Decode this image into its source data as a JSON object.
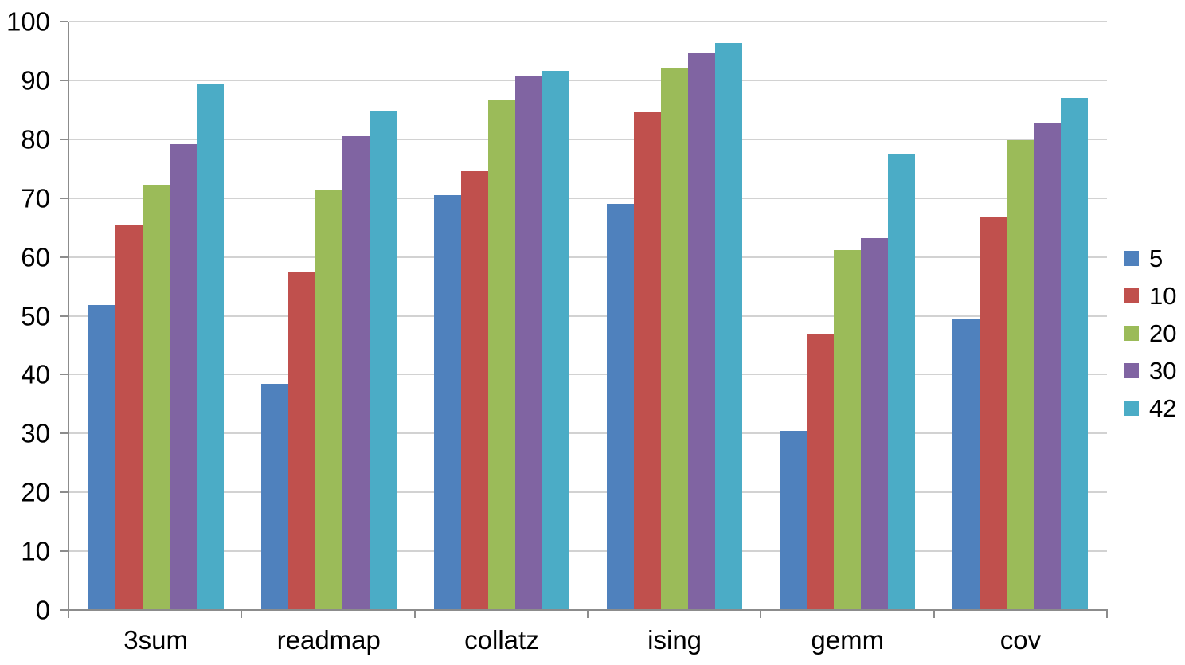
{
  "chart_data": {
    "type": "bar",
    "title": "",
    "xlabel": "",
    "ylabel": "",
    "categories": [
      "3sum",
      "readmap",
      "collatz",
      "ising",
      "gemm",
      "cov"
    ],
    "series": [
      {
        "name": "5",
        "color": "#4F81BD",
        "values": [
          51.8,
          38.4,
          70.5,
          69.0,
          30.5,
          49.5
        ]
      },
      {
        "name": "10",
        "color": "#C0504D",
        "values": [
          65.4,
          57.5,
          74.6,
          84.6,
          46.9,
          66.7
        ]
      },
      {
        "name": "20",
        "color": "#9BBB59",
        "values": [
          72.2,
          71.4,
          86.7,
          92.2,
          61.1,
          79.8
        ]
      },
      {
        "name": "30",
        "color": "#8064A2",
        "values": [
          79.2,
          80.5,
          90.7,
          94.6,
          63.2,
          82.8
        ]
      },
      {
        "name": "42",
        "color": "#4BACC6",
        "values": [
          89.5,
          84.7,
          91.6,
          96.3,
          77.6,
          87.0
        ]
      }
    ],
    "ylim": [
      0,
      100
    ],
    "yticks": [
      0,
      10,
      20,
      30,
      40,
      50,
      60,
      70,
      80,
      90,
      100
    ],
    "grid": true,
    "legend_position": "right",
    "colors": {
      "background": "#FFFFFF",
      "gridline": "#A6A6A6",
      "axis": "#8C8C8C",
      "text": "#000000"
    }
  }
}
